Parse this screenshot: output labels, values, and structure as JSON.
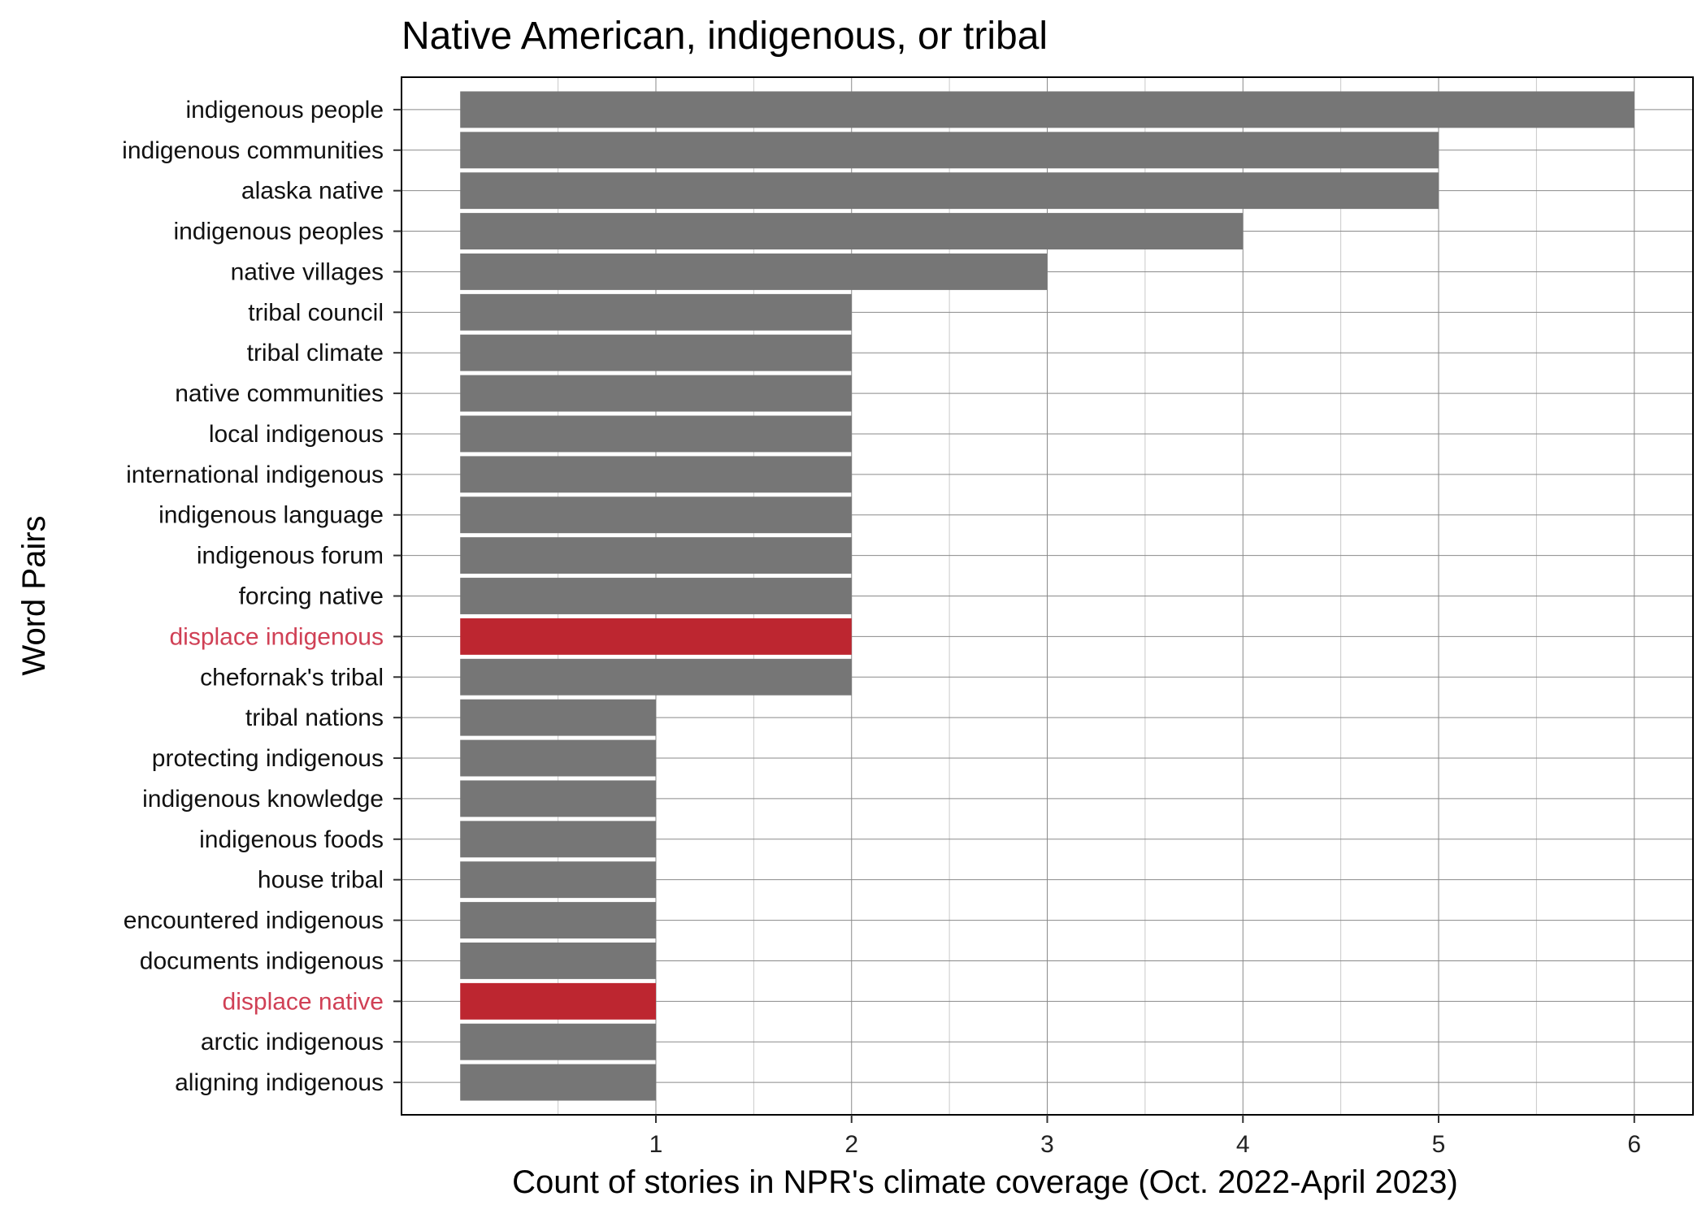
{
  "chart_data": {
    "type": "bar",
    "orientation": "horizontal",
    "title": "Native American, indigenous, or tribal",
    "xlabel": "Count of stories in NPR's climate coverage (Oct. 2022-April 2023)",
    "ylabel": "Word Pairs",
    "xlim": [
      -0.3,
      6.3
    ],
    "xticks": [
      1,
      2,
      3,
      4,
      5,
      6
    ],
    "grid": true,
    "colors": {
      "default": "#767676",
      "highlight": "#bd2630",
      "highlight_label": "#d04055",
      "label": "#111111"
    },
    "categories": [
      "indigenous people",
      "indigenous communities",
      "alaska native",
      "indigenous peoples",
      "native villages",
      "tribal council",
      "tribal climate",
      "native communities",
      "local indigenous",
      "international indigenous",
      "indigenous language",
      "indigenous forum",
      "forcing native",
      "displace indigenous",
      "chefornak's tribal",
      "tribal nations",
      "protecting indigenous",
      "indigenous knowledge",
      "indigenous foods",
      "house tribal",
      "encountered indigenous",
      "documents indigenous",
      "displace native",
      "arctic indigenous",
      "aligning indigenous"
    ],
    "values": [
      6,
      5,
      5,
      4,
      3,
      2,
      2,
      2,
      2,
      2,
      2,
      2,
      2,
      2,
      2,
      1,
      1,
      1,
      1,
      1,
      1,
      1,
      1,
      1,
      1
    ],
    "highlighted": [
      "displace indigenous",
      "displace native"
    ]
  }
}
